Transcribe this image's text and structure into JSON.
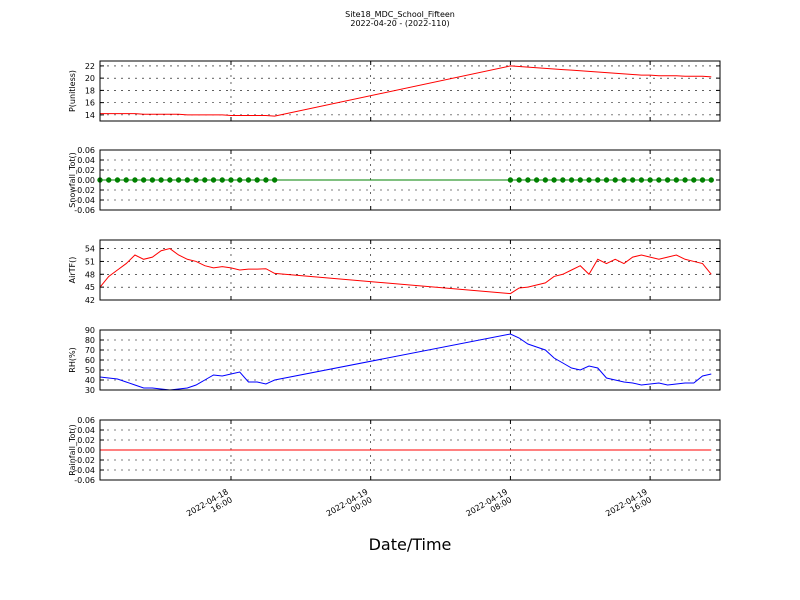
{
  "figure": {
    "title": "Site18_MDC_School_Fifteen",
    "subtitle": "2022-04-20 - (2022-110)",
    "xlabel": "Date/Time"
  },
  "chart_data": [
    {
      "type": "line",
      "ylabel": "P(unitless)",
      "color": "#ff0000",
      "x": [
        "2022-04-18 08:30",
        "2022-04-18 09:00",
        "2022-04-18 09:30",
        "2022-04-18 10:00",
        "2022-04-18 10:30",
        "2022-04-18 11:00",
        "2022-04-18 11:30",
        "2022-04-18 12:00",
        "2022-04-18 12:30",
        "2022-04-18 13:00",
        "2022-04-18 13:30",
        "2022-04-18 14:00",
        "2022-04-18 14:30",
        "2022-04-18 15:00",
        "2022-04-18 15:30",
        "2022-04-18 16:00",
        "2022-04-18 16:30",
        "2022-04-18 17:00",
        "2022-04-18 17:30",
        "2022-04-18 18:00",
        "2022-04-18 18:30",
        "2022-04-19 08:00",
        "2022-04-19 08:30",
        "2022-04-19 09:00",
        "2022-04-19 09:30",
        "2022-04-19 10:00",
        "2022-04-19 10:30",
        "2022-04-19 11:00",
        "2022-04-19 11:30",
        "2022-04-19 12:00",
        "2022-04-19 12:30",
        "2022-04-19 13:00",
        "2022-04-19 13:30",
        "2022-04-19 14:00",
        "2022-04-19 14:30",
        "2022-04-19 15:00",
        "2022-04-19 15:30",
        "2022-04-19 16:00",
        "2022-04-19 16:30",
        "2022-04-19 17:00",
        "2022-04-19 17:30",
        "2022-04-19 18:00",
        "2022-04-19 18:30",
        "2022-04-19 19:00",
        "2022-04-19 19:30"
      ],
      "values": [
        14.2,
        14.2,
        14.2,
        14.2,
        14.2,
        14.1,
        14.1,
        14.1,
        14.1,
        14.1,
        14.0,
        14.0,
        14.0,
        14.0,
        14.0,
        13.9,
        13.9,
        13.9,
        13.9,
        13.9,
        13.8,
        22.0,
        21.9,
        21.8,
        21.7,
        21.6,
        21.5,
        21.4,
        21.3,
        21.2,
        21.1,
        21.0,
        20.9,
        20.8,
        20.7,
        20.6,
        20.5,
        20.5,
        20.4,
        20.4,
        20.4,
        20.3,
        20.3,
        20.3,
        20.2
      ],
      "xlim": [
        "2022-04-18 08:30",
        "2022-04-19 20:00"
      ],
      "xticks": [
        "2022-04-18 16:00",
        "2022-04-19 00:00",
        "2022-04-19 08:00",
        "2022-04-19 16:00"
      ],
      "ylim": [
        13,
        22.8
      ],
      "yticks": [
        14,
        16,
        18,
        20,
        22
      ],
      "grid": true
    },
    {
      "type": "line",
      "ylabel": "Snowfall_Tot()",
      "color": "#008000",
      "marker": "o",
      "x": [
        "2022-04-18 08:30",
        "2022-04-18 09:00",
        "2022-04-18 09:30",
        "2022-04-18 10:00",
        "2022-04-18 10:30",
        "2022-04-18 11:00",
        "2022-04-18 11:30",
        "2022-04-18 12:00",
        "2022-04-18 12:30",
        "2022-04-18 13:00",
        "2022-04-18 13:30",
        "2022-04-18 14:00",
        "2022-04-18 14:30",
        "2022-04-18 15:00",
        "2022-04-18 15:30",
        "2022-04-18 16:00",
        "2022-04-18 16:30",
        "2022-04-18 17:00",
        "2022-04-18 17:30",
        "2022-04-18 18:00",
        "2022-04-18 18:30",
        "2022-04-19 08:00",
        "2022-04-19 08:30",
        "2022-04-19 09:00",
        "2022-04-19 09:30",
        "2022-04-19 10:00",
        "2022-04-19 10:30",
        "2022-04-19 11:00",
        "2022-04-19 11:30",
        "2022-04-19 12:00",
        "2022-04-19 12:30",
        "2022-04-19 13:00",
        "2022-04-19 13:30",
        "2022-04-19 14:00",
        "2022-04-19 14:30",
        "2022-04-19 15:00",
        "2022-04-19 15:30",
        "2022-04-19 16:00",
        "2022-04-19 16:30",
        "2022-04-19 17:00",
        "2022-04-19 17:30",
        "2022-04-19 18:00",
        "2022-04-19 18:30",
        "2022-04-19 19:00",
        "2022-04-19 19:30"
      ],
      "values": [
        0,
        0,
        0,
        0,
        0,
        0,
        0,
        0,
        0,
        0,
        0,
        0,
        0,
        0,
        0,
        0,
        0,
        0,
        0,
        0,
        0,
        0,
        0,
        0,
        0,
        0,
        0,
        0,
        0,
        0,
        0,
        0,
        0,
        0,
        0,
        0,
        0,
        0,
        0,
        0,
        0,
        0,
        0,
        0,
        0
      ],
      "xlim": [
        "2022-04-18 08:30",
        "2022-04-19 20:00"
      ],
      "xticks": [
        "2022-04-18 16:00",
        "2022-04-19 00:00",
        "2022-04-19 08:00",
        "2022-04-19 16:00"
      ],
      "ylim": [
        -0.06,
        0.06
      ],
      "yticks": [
        -0.06,
        -0.04,
        -0.02,
        {
          "value": 0,
          "label": "0.00"
        },
        0.02,
        0.04,
        0.06
      ],
      "grid": true
    },
    {
      "type": "line",
      "ylabel": "AirTF()",
      "color": "#ff0000",
      "x": [
        "2022-04-18 08:30",
        "2022-04-18 09:00",
        "2022-04-18 09:30",
        "2022-04-18 10:00",
        "2022-04-18 10:30",
        "2022-04-18 11:00",
        "2022-04-18 11:30",
        "2022-04-18 12:00",
        "2022-04-18 12:30",
        "2022-04-18 13:00",
        "2022-04-18 13:30",
        "2022-04-18 14:00",
        "2022-04-18 14:30",
        "2022-04-18 15:00",
        "2022-04-18 15:30",
        "2022-04-18 16:00",
        "2022-04-18 16:30",
        "2022-04-18 17:00",
        "2022-04-18 17:30",
        "2022-04-18 18:00",
        "2022-04-18 18:30",
        "2022-04-19 08:00",
        "2022-04-19 08:30",
        "2022-04-19 09:00",
        "2022-04-19 09:30",
        "2022-04-19 10:00",
        "2022-04-19 10:30",
        "2022-04-19 11:00",
        "2022-04-19 11:30",
        "2022-04-19 12:00",
        "2022-04-19 12:30",
        "2022-04-19 13:00",
        "2022-04-19 13:30",
        "2022-04-19 14:00",
        "2022-04-19 14:30",
        "2022-04-19 15:00",
        "2022-04-19 15:30",
        "2022-04-19 16:00",
        "2022-04-19 16:30",
        "2022-04-19 17:00",
        "2022-04-19 17:30",
        "2022-04-19 18:00",
        "2022-04-19 18:30",
        "2022-04-19 19:00",
        "2022-04-19 19:30"
      ],
      "values": [
        45,
        47.5,
        49,
        50.5,
        52.5,
        51.5,
        52,
        53.5,
        54,
        52.5,
        51.5,
        51,
        50,
        49.5,
        49.8,
        49.5,
        49,
        49.2,
        49.2,
        49.3,
        48.2,
        43.5,
        44.8,
        45,
        45.5,
        46,
        47.5,
        48,
        49,
        50,
        48,
        51.5,
        50.5,
        51.5,
        50.5,
        52,
        52.5,
        52,
        51.5,
        52,
        52.5,
        51.5,
        51,
        50.5,
        48
      ],
      "xlim": [
        "2022-04-18 08:30",
        "2022-04-19 20:00"
      ],
      "xticks": [
        "2022-04-18 16:00",
        "2022-04-19 00:00",
        "2022-04-19 08:00",
        "2022-04-19 16:00"
      ],
      "ylim": [
        42,
        56
      ],
      "yticks": [
        42,
        45,
        48,
        51,
        54
      ],
      "grid": true
    },
    {
      "type": "line",
      "ylabel": "RH(%)",
      "color": "#0000ff",
      "x": [
        "2022-04-18 08:30",
        "2022-04-18 09:00",
        "2022-04-18 09:30",
        "2022-04-18 10:00",
        "2022-04-18 10:30",
        "2022-04-18 11:00",
        "2022-04-18 11:30",
        "2022-04-18 12:00",
        "2022-04-18 12:30",
        "2022-04-18 13:00",
        "2022-04-18 13:30",
        "2022-04-18 14:00",
        "2022-04-18 14:30",
        "2022-04-18 15:00",
        "2022-04-18 15:30",
        "2022-04-18 16:00",
        "2022-04-18 16:30",
        "2022-04-18 17:00",
        "2022-04-18 17:30",
        "2022-04-18 18:00",
        "2022-04-18 18:30",
        "2022-04-19 08:00",
        "2022-04-19 08:30",
        "2022-04-19 09:00",
        "2022-04-19 09:30",
        "2022-04-19 10:00",
        "2022-04-19 10:30",
        "2022-04-19 11:00",
        "2022-04-19 11:30",
        "2022-04-19 12:00",
        "2022-04-19 12:30",
        "2022-04-19 13:00",
        "2022-04-19 13:30",
        "2022-04-19 14:00",
        "2022-04-19 14:30",
        "2022-04-19 15:00",
        "2022-04-19 15:30",
        "2022-04-19 16:00",
        "2022-04-19 16:30",
        "2022-04-19 17:00",
        "2022-04-19 17:30",
        "2022-04-19 18:00",
        "2022-04-19 18:30",
        "2022-04-19 19:00",
        "2022-04-19 19:30"
      ],
      "values": [
        43,
        42,
        41,
        38,
        35,
        32,
        32,
        31,
        30,
        31,
        32,
        35,
        40,
        45,
        44,
        46,
        48,
        38,
        38,
        36,
        40,
        86,
        82,
        76,
        73,
        70,
        62,
        57,
        52,
        50,
        54,
        52,
        42,
        40,
        38,
        37,
        35,
        36,
        37,
        35,
        36,
        37,
        37,
        44,
        46
      ],
      "xlim": [
        "2022-04-18 08:30",
        "2022-04-19 20:00"
      ],
      "xticks": [
        "2022-04-18 16:00",
        "2022-04-19 00:00",
        "2022-04-19 08:00",
        "2022-04-19 16:00"
      ],
      "ylim": [
        30,
        90
      ],
      "yticks": [
        30,
        40,
        50,
        60,
        70,
        80,
        90
      ],
      "grid": true
    },
    {
      "type": "line",
      "ylabel": "Rainfall_Tot()",
      "color": "#ff0000",
      "x": [
        "2022-04-18 08:30",
        "2022-04-18 09:00",
        "2022-04-18 09:30",
        "2022-04-18 10:00",
        "2022-04-18 10:30",
        "2022-04-18 11:00",
        "2022-04-18 11:30",
        "2022-04-18 12:00",
        "2022-04-18 12:30",
        "2022-04-18 13:00",
        "2022-04-18 13:30",
        "2022-04-18 14:00",
        "2022-04-18 14:30",
        "2022-04-18 15:00",
        "2022-04-18 15:30",
        "2022-04-18 16:00",
        "2022-04-18 16:30",
        "2022-04-18 17:00",
        "2022-04-18 17:30",
        "2022-04-18 18:00",
        "2022-04-18 18:30",
        "2022-04-19 08:00",
        "2022-04-19 08:30",
        "2022-04-19 09:00",
        "2022-04-19 09:30",
        "2022-04-19 10:00",
        "2022-04-19 10:30",
        "2022-04-19 11:00",
        "2022-04-19 11:30",
        "2022-04-19 12:00",
        "2022-04-19 12:30",
        "2022-04-19 13:00",
        "2022-04-19 13:30",
        "2022-04-19 14:00",
        "2022-04-19 14:30",
        "2022-04-19 15:00",
        "2022-04-19 15:30",
        "2022-04-19 16:00",
        "2022-04-19 16:30",
        "2022-04-19 17:00",
        "2022-04-19 17:30",
        "2022-04-19 18:00",
        "2022-04-19 18:30",
        "2022-04-19 19:00",
        "2022-04-19 19:30"
      ],
      "values": [
        0,
        0,
        0,
        0,
        0,
        0,
        0,
        0,
        0,
        0,
        0,
        0,
        0,
        0,
        0,
        0,
        0,
        0,
        0,
        0,
        0,
        0,
        0,
        0,
        0,
        0,
        0,
        0,
        0,
        0,
        0,
        0,
        0,
        0,
        0,
        0,
        0,
        0,
        0,
        0,
        0,
        0,
        0,
        0,
        0
      ],
      "xlim": [
        "2022-04-18 08:30",
        "2022-04-19 20:00"
      ],
      "xticks": [
        "2022-04-18 16:00",
        "2022-04-19 00:00",
        "2022-04-19 08:00",
        "2022-04-19 16:00"
      ],
      "ylim": [
        -0.06,
        0.06
      ],
      "yticks": [
        -0.06,
        -0.04,
        -0.02,
        {
          "value": 0,
          "label": "0.00"
        },
        0.02,
        0.04,
        0.06
      ],
      "grid": true
    }
  ]
}
